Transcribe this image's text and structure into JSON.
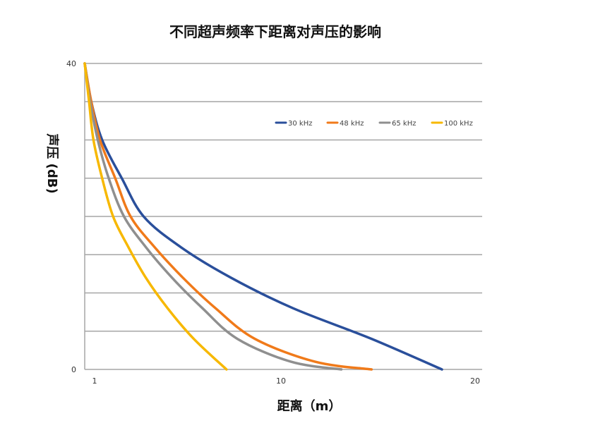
{
  "chart_data": {
    "type": "line",
    "title": "不同超声频率下距离对声压的影响",
    "xlabel": "距离（m）",
    "ylabel": "声压 (dB)",
    "x_ticks": [
      1,
      10,
      20
    ],
    "y_ticks": [
      0,
      40
    ],
    "xlim": [
      1,
      20
    ],
    "ylim": [
      0,
      40
    ],
    "y_gridlines": 8,
    "grid": true,
    "legend_position": "top-right",
    "series": [
      {
        "name": "30 kHz",
        "color": "#2a4f9b",
        "x": [
          1.0,
          1.3,
          1.8,
          2.7,
          3.7,
          5.4,
          7.7,
          10.6,
          14.5,
          18.0
        ],
        "y": [
          40.0,
          35.0,
          30.0,
          25.0,
          20.0,
          16.0,
          12.0,
          8.0,
          4.0,
          0.0
        ]
      },
      {
        "name": "48 kHz",
        "color": "#f07a1a",
        "x": [
          1.0,
          1.3,
          1.7,
          2.4,
          3.1,
          4.2,
          5.5,
          7.0,
          8.8,
          11.7,
          14.5
        ],
        "y": [
          40.0,
          35.0,
          30.0,
          25.0,
          20.0,
          16.0,
          12.0,
          8.0,
          4.0,
          1.0,
          0.0
        ]
      },
      {
        "name": "65 kHz",
        "color": "#8f8f8f",
        "x": [
          1.0,
          1.25,
          1.6,
          2.1,
          2.8,
          3.8,
          5.0,
          6.4,
          8.0,
          10.5,
          13.0
        ],
        "y": [
          40.0,
          35.0,
          30.0,
          25.0,
          20.0,
          16.0,
          12.0,
          8.0,
          4.0,
          1.0,
          0.0
        ]
      },
      {
        "name": "100 kHz",
        "color": "#f7b800",
        "x": [
          1.0,
          1.2,
          1.4,
          1.8,
          2.3,
          3.0,
          3.8,
          4.8,
          6.0,
          7.5
        ],
        "y": [
          40.0,
          35.0,
          30.0,
          25.0,
          20.0,
          16.0,
          12.0,
          8.0,
          4.0,
          0.0
        ]
      }
    ]
  }
}
